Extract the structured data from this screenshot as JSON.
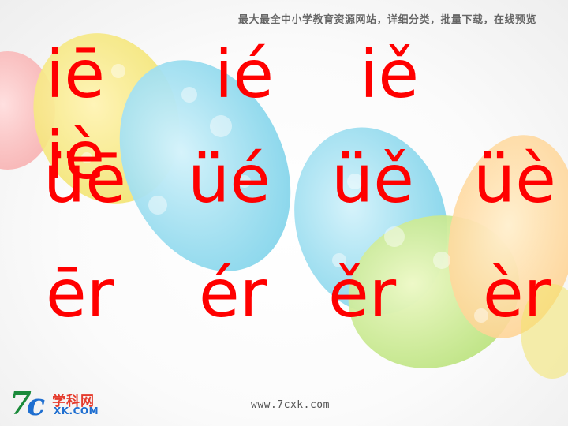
{
  "banner": "最大最全中小学教育资源网站，详细分类，批量下载，在线预览",
  "rows": [
    [
      "iē",
      "ié",
      "iě",
      "iè"
    ],
    [
      "üē",
      "üé",
      "üě",
      "üè"
    ],
    [
      "ēr",
      "ér",
      "ěr",
      "èr"
    ]
  ],
  "footer": {
    "url": "www.7cxk.com"
  },
  "logo": {
    "mark_seven": "7",
    "mark_c": "c",
    "cn": "学科网",
    "en": "XK.COM"
  },
  "colors": {
    "syllable": "#ff0000",
    "brand_green": "#1a8a3a",
    "brand_blue": "#1f6fd0",
    "brand_red": "#e53b2c"
  }
}
